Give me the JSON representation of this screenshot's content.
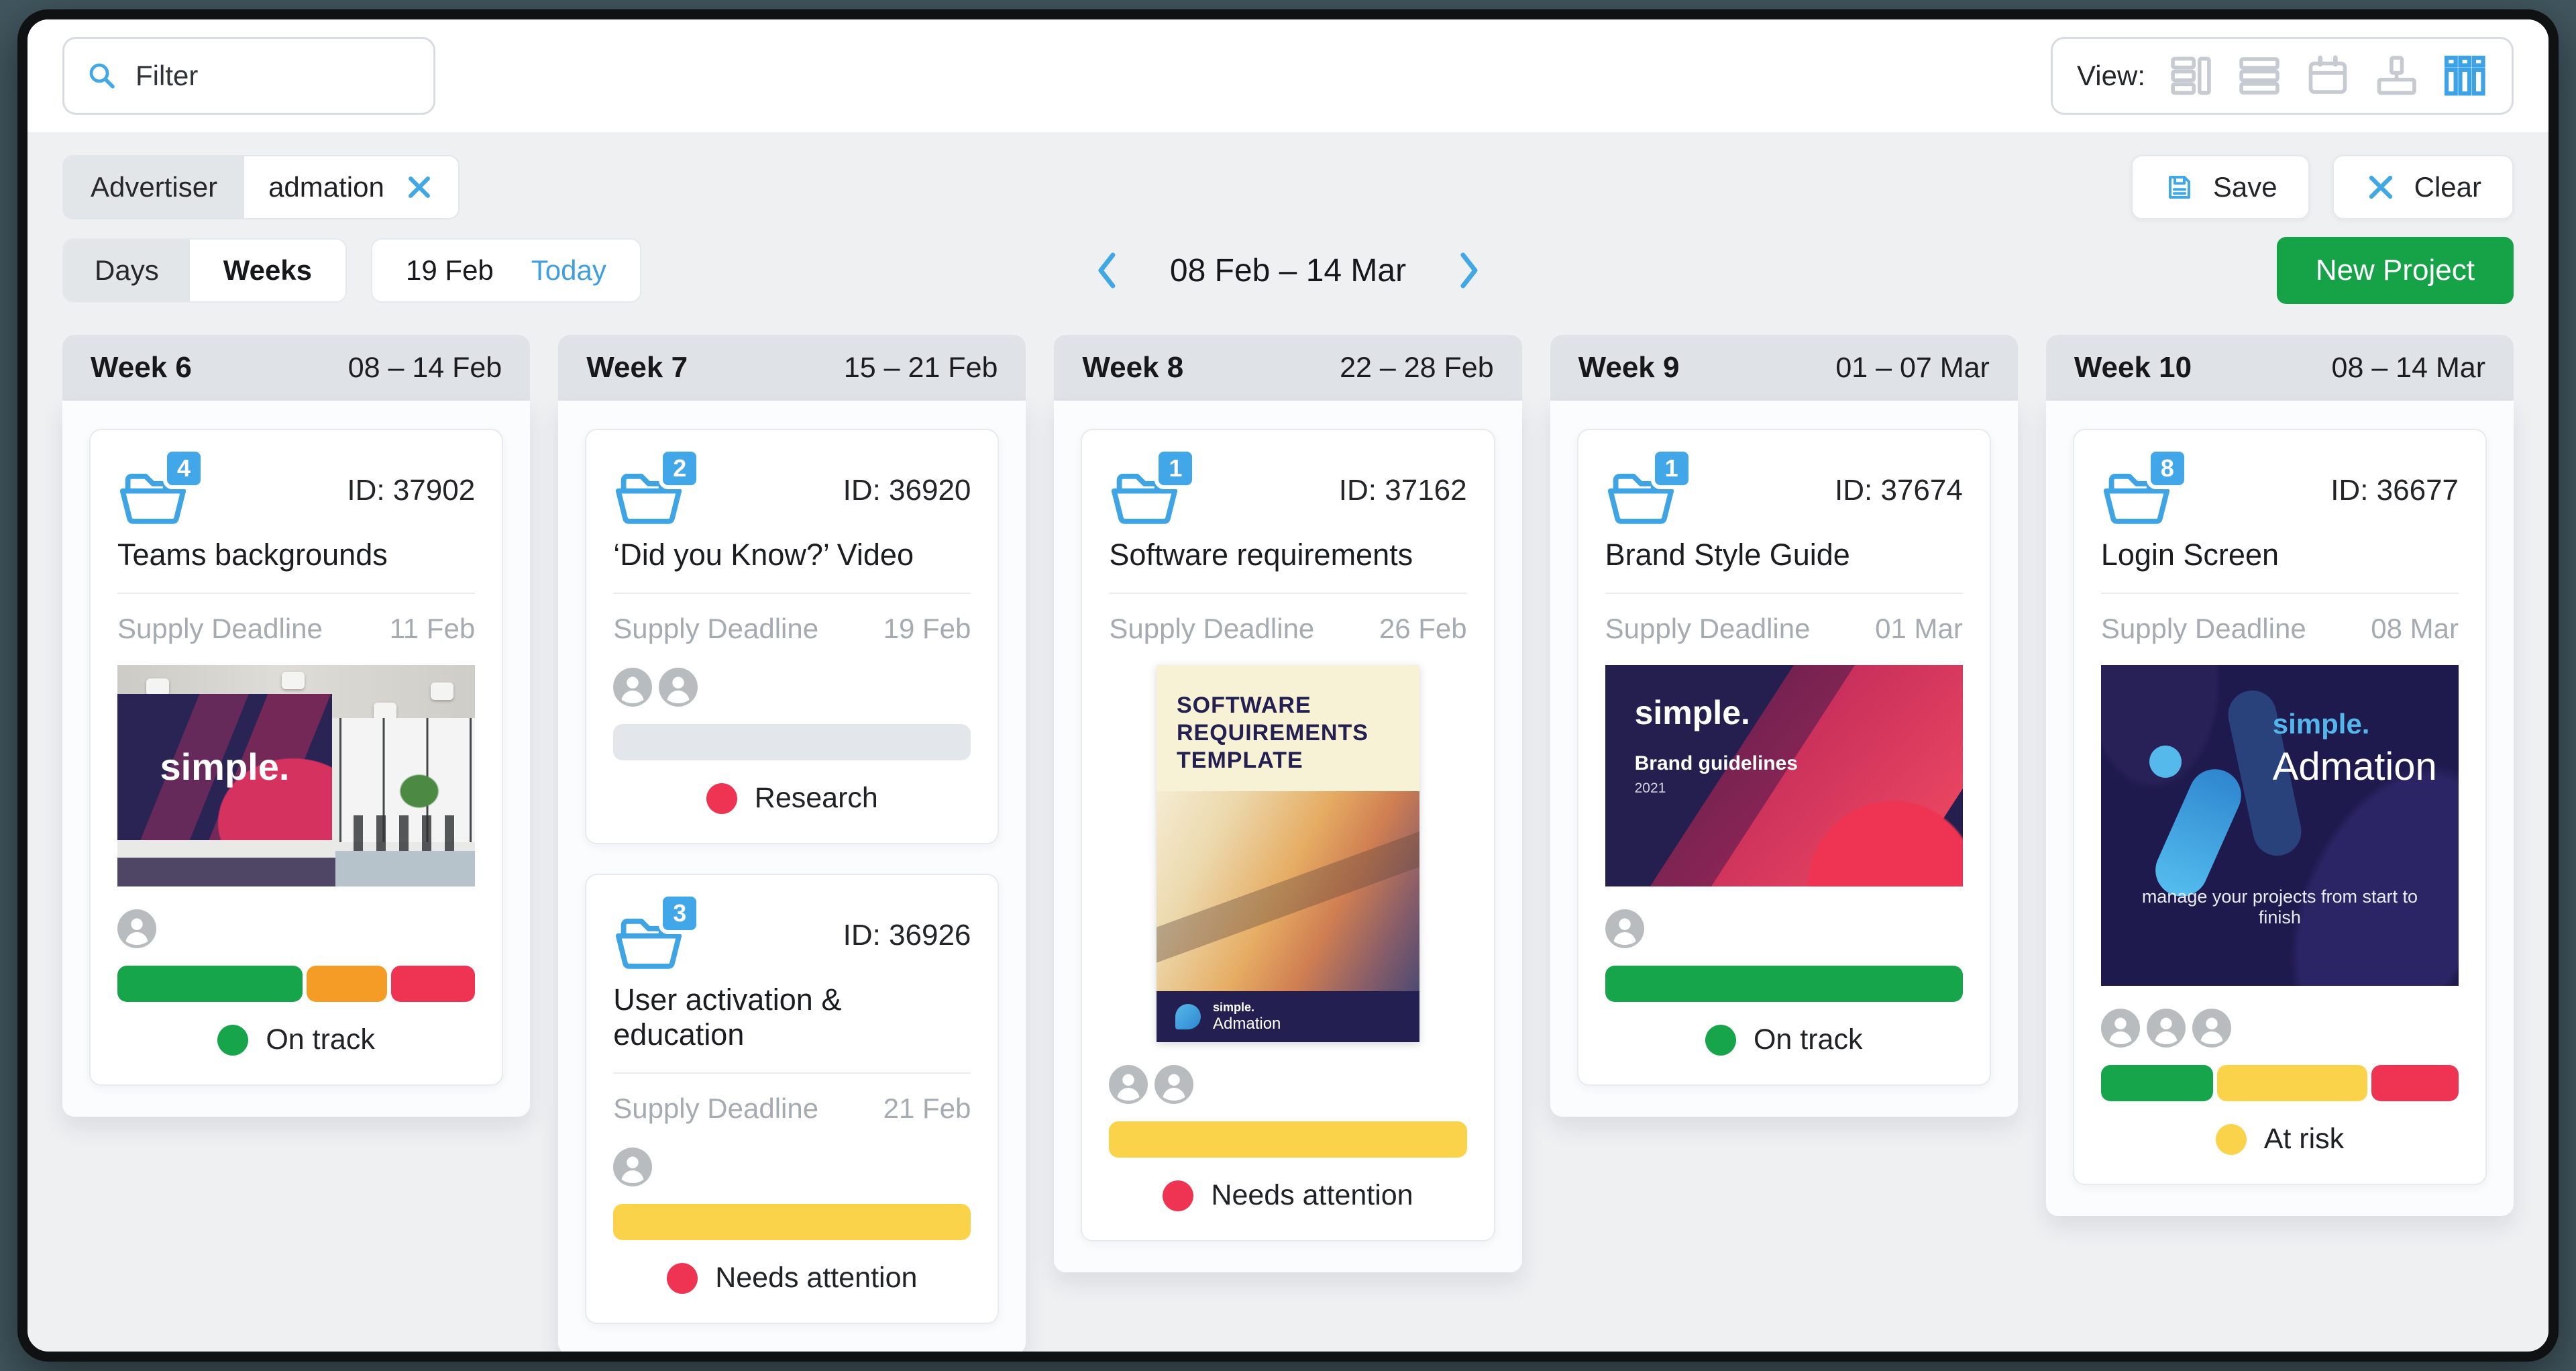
{
  "topbar": {
    "filter_placeholder": "Filter",
    "view_label": "View:"
  },
  "filter_chip": {
    "label": "Advertiser",
    "value": "admation"
  },
  "actions": {
    "save": "Save",
    "clear": "Clear",
    "new_project": "New Project"
  },
  "toolbar": {
    "days": "Days",
    "weeks": "Weeks",
    "date": "19 Feb",
    "today": "Today",
    "range": "08 Feb – 14 Mar"
  },
  "colors": {
    "accent_blue": "#3fa4e4",
    "green": "#17a54b",
    "orange": "#f59c27",
    "red": "#ee3452",
    "yellow": "#fbd34b",
    "empty_bar": "#e3e6ea"
  },
  "columns": [
    {
      "week": "Week 6",
      "range": "08 – 14 Feb",
      "cards": [
        {
          "badge": "4",
          "id": "ID: 37902",
          "title": "Teams backgrounds",
          "deadline_label": "Supply Deadline",
          "deadline": "11 Feb",
          "avatars": 1,
          "bar": [
            {
              "color": "#17a54b",
              "pct": 53
            },
            {
              "color": "#f59c27",
              "pct": 23
            },
            {
              "color": "#ee3452",
              "pct": 24
            }
          ],
          "status": {
            "color": "#17a54b",
            "label": "On track"
          },
          "image": {
            "brand": "simple."
          }
        }
      ]
    },
    {
      "week": "Week 7",
      "range": "15 – 21 Feb",
      "cards": [
        {
          "badge": "2",
          "id": "ID: 36920",
          "title": "‘Did you Know?’ Video",
          "deadline_label": "Supply Deadline",
          "deadline": "19 Feb",
          "avatars": 2,
          "bar": [
            {
              "color": "#e3e6ea",
              "pct": 100
            }
          ],
          "status": {
            "color": "#ee3452",
            "label": "Research"
          }
        },
        {
          "badge": "3",
          "id": "ID: 36926",
          "title": "User activation & education",
          "deadline_label": "Supply Deadline",
          "deadline": "21 Feb",
          "avatars": 1,
          "bar": [
            {
              "color": "#fbd34b",
              "pct": 100
            }
          ],
          "status": {
            "color": "#ee3452",
            "label": "Needs attention"
          }
        }
      ]
    },
    {
      "week": "Week 8",
      "range": "22 – 28 Feb",
      "cards": [
        {
          "badge": "1",
          "id": "ID: 37162",
          "title": "Software requirements",
          "deadline_label": "Supply Deadline",
          "deadline": "26 Feb",
          "avatars": 2,
          "bar": [
            {
              "color": "#fbd34b",
              "pct": 100
            }
          ],
          "status": {
            "color": "#ee3452",
            "label": "Needs attention"
          },
          "image": {
            "title": "SOFTWARE REQUIREMENTS TEMPLATE",
            "brand": "simple.",
            "product": "Admation"
          }
        }
      ]
    },
    {
      "week": "Week 9",
      "range": "01 – 07 Mar",
      "cards": [
        {
          "badge": "1",
          "id": "ID: 37674",
          "title": "Brand Style Guide",
          "deadline_label": "Supply Deadline",
          "deadline": "01 Mar",
          "avatars": 1,
          "bar": [
            {
              "color": "#17a54b",
              "pct": 100
            }
          ],
          "status": {
            "color": "#17a54b",
            "label": "On track"
          },
          "image": {
            "brand": "simple.",
            "subtitle": "Brand guidelines",
            "year": "2021"
          }
        }
      ]
    },
    {
      "week": "Week 10",
      "range": "08 – 14 Mar",
      "cards": [
        {
          "badge": "8",
          "id": "ID: 36677",
          "title": "Login Screen",
          "deadline_label": "Supply Deadline",
          "deadline": "08 Mar",
          "avatars": 3,
          "bar": [
            {
              "color": "#17a54b",
              "pct": 32
            },
            {
              "color": "#fbd34b",
              "pct": 43
            },
            {
              "color": "#ee3452",
              "pct": 25
            }
          ],
          "status": {
            "color": "#fbd34b",
            "label": "At risk"
          },
          "image": {
            "brand": "simple.",
            "product": "Admation",
            "tagline": "manage your projects from start to finish"
          }
        }
      ]
    }
  ]
}
